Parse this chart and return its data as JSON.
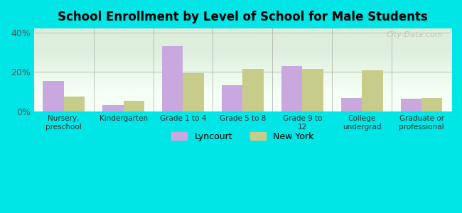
{
  "title": "School Enrollment by Level of School for Male Students",
  "categories": [
    "Nursery,\npreschool",
    "Kindergarten",
    "Grade 1 to 4",
    "Grade 5 to 8",
    "Grade 9 to\n12",
    "College\nundergrad",
    "Graduate or\nprofessional"
  ],
  "lyncourt": [
    15.5,
    3.5,
    33.0,
    13.5,
    23.0,
    7.0,
    6.5
  ],
  "new_york": [
    7.5,
    5.5,
    19.5,
    21.5,
    21.5,
    21.0,
    7.0
  ],
  "lyncourt_color": "#c9a8e0",
  "new_york_color": "#c8cc8a",
  "background_color": "#00e5e5",
  "plot_bg_top": "#ddeedd",
  "plot_bg_bottom": "#f5fff5",
  "ylim": [
    0,
    42
  ],
  "yticks": [
    0,
    20,
    40
  ],
  "ytick_labels": [
    "0%",
    "20%",
    "40%"
  ],
  "watermark": "City-Data.com",
  "legend_lyncourt": "Lyncourt",
  "legend_newyork": "New York"
}
